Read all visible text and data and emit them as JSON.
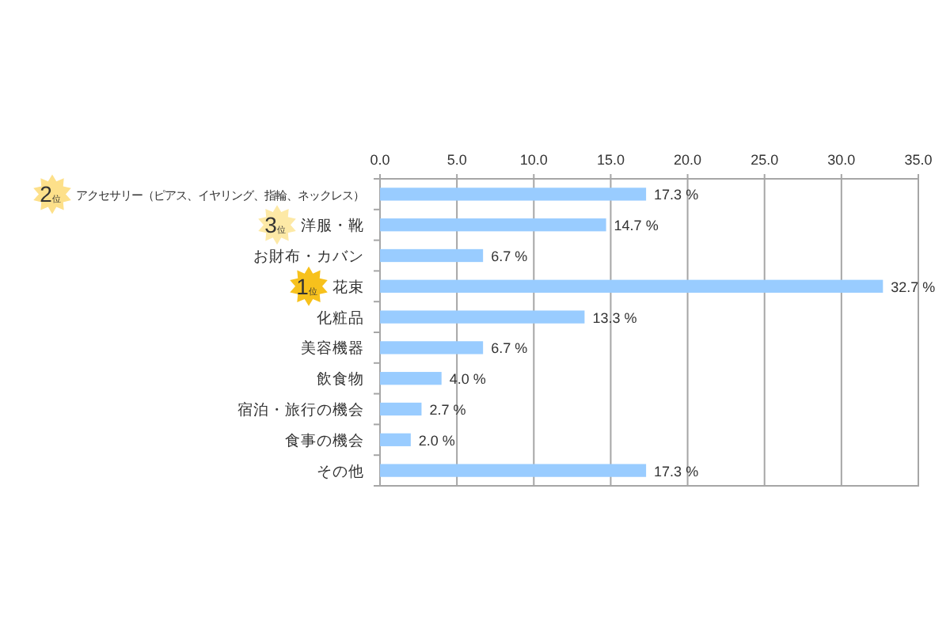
{
  "chart_data": {
    "type": "bar",
    "orientation": "horizontal",
    "categories": [
      "アクセサリー（ピアス、イヤリング、指輪、ネックレス）",
      "洋服・靴",
      "お財布・カバン",
      "花束",
      "化粧品",
      "美容機器",
      "飲食物",
      "宿泊・旅行の機会",
      "食事の機会",
      "その他"
    ],
    "values": [
      17.3,
      14.7,
      6.7,
      32.7,
      13.3,
      6.7,
      4.0,
      2.7,
      2.0,
      17.3
    ],
    "value_labels": [
      "17.3 %",
      "14.7 %",
      "6.7 %",
      "32.7 %",
      "13.3 %",
      "6.7 %",
      "4.0 %",
      "2.7 %",
      "2.0 %",
      "17.3 %"
    ],
    "color": "#99ccff",
    "xlim": [
      0,
      35
    ],
    "xticks": [
      {
        "value": 0,
        "label": "0.0"
      },
      {
        "value": 5,
        "label": "5.0"
      },
      {
        "value": 10,
        "label": "10.0"
      },
      {
        "value": 15,
        "label": "15.0"
      },
      {
        "value": 20,
        "label": "20.0"
      },
      {
        "value": 25,
        "label": "25.0"
      },
      {
        "value": 30,
        "label": "30.0"
      },
      {
        "value": 35,
        "label": "35.0"
      }
    ],
    "grid": "x",
    "annotations": [
      "2位",
      "3位",
      "1位"
    ]
  }
}
